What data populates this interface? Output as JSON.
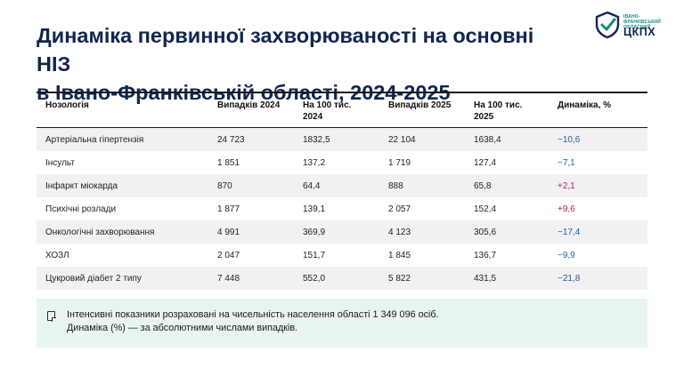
{
  "header": {
    "title_line1": "Динаміка первинної захворюваності на основні НІЗ",
    "title_line2": "в Івано-Франківській області, 2024-2025"
  },
  "logo": {
    "small_line1": "ІВАНО-ФРАНКІВСЬКИЙ",
    "small_line2": "ОБЛАСНИЙ",
    "big": "ЦКПХ",
    "icon": "shield-check-icon",
    "color_primary": "#0f2650",
    "color_accent": "#1b8a80"
  },
  "table": {
    "headers": {
      "nosology": "Нозологія",
      "cases2024": "Випадків 2024",
      "rate2024_l1": "На 100 тис.",
      "rate2024_l2": "2024",
      "cases2025": "Випадків 2025",
      "rate2025_l1": "На 100 тис.",
      "rate2025_l2": "2025",
      "dynamics": "Динаміка, %"
    },
    "rows": [
      {
        "name": "Артеріальна гіпертензія",
        "c2024": "24 723",
        "r2024": "1832,5",
        "c2025": "22 104",
        "r2025": "1638,4",
        "dyn": "−10,6"
      },
      {
        "name": "Інсульт",
        "c2024": "1 851",
        "r2024": "137,2",
        "c2025": "1 719",
        "r2025": "127,4",
        "dyn": "−7,1"
      },
      {
        "name": "Інфаркт міокарда",
        "c2024": "870",
        "r2024": "64,4",
        "c2025": "888",
        "r2025": "65,8",
        "dyn": "+2,1"
      },
      {
        "name": "Психічні розлади",
        "c2024": "1 877",
        "r2024": "139,1",
        "c2025": "2 057",
        "r2025": "152,4",
        "dyn": "+9,6"
      },
      {
        "name": "Онкологічні захворювання",
        "c2024": "4 991",
        "r2024": "369,9",
        "c2025": "4 123",
        "r2025": "305,6",
        "dyn": "−17,4"
      },
      {
        "name": "ХОЗЛ",
        "c2024": "2 047",
        "r2024": "151,7",
        "c2025": "1 845",
        "r2025": "136,7",
        "dyn": "−9,9"
      },
      {
        "name": "Цукровий діабет 2 типу",
        "c2024": "7 448",
        "r2024": "552,0",
        "c2025": "5 822",
        "r2025": "431,5",
        "dyn": "−21,8"
      }
    ],
    "colors": {
      "decrease": "#1a5fa8",
      "increase": "#c0195a",
      "stripe": "#f1f1f3"
    }
  },
  "note": {
    "icon": "note-icon",
    "line1": "Інтенсивні показники розраховані на чисельність населення області 1 349 096 осіб.",
    "line2": "Динаміка (%) — за абсолютними числами випадків.",
    "background": "#e7f4f2"
  }
}
